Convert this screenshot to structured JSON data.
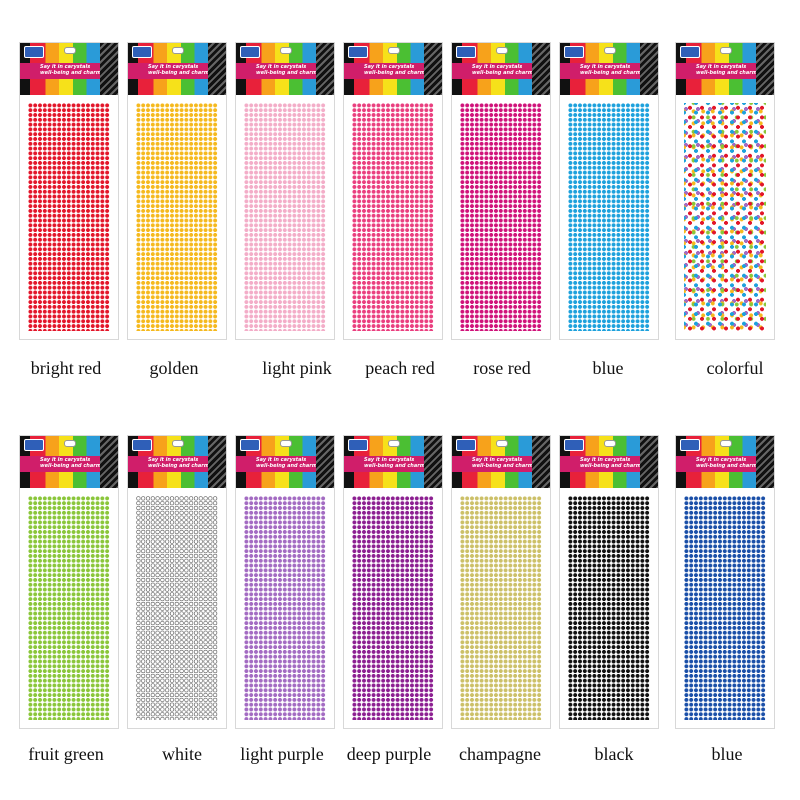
{
  "card_header": {
    "tagline": "Say it in carystals\nwell-being and charming!"
  },
  "row1": [
    {
      "label": "bright red",
      "color": "#e3162a"
    },
    {
      "label": "golden",
      "color": "#f5b91e"
    },
    {
      "label": "light pink",
      "color": "#f3adc8"
    },
    {
      "label": "peach red",
      "color": "#ea3f7f"
    },
    {
      "label": "rose red",
      "color": "#d0137a"
    },
    {
      "label": "blue",
      "color": "#1da1dc"
    },
    {
      "label": "colorful",
      "color": "multicolor"
    }
  ],
  "row2": [
    {
      "label": "fruit green",
      "color": "#8ac63a"
    },
    {
      "label": "white",
      "color": "#ffffff"
    },
    {
      "label": "light purple",
      "color": "#a36bc2"
    },
    {
      "label": "deep purple",
      "color": "#8c1f91"
    },
    {
      "label": "champagne",
      "color": "#ccc068"
    },
    {
      "label": "black",
      "color": "#111111"
    },
    {
      "label": "blue",
      "color": "#1a4fa8"
    }
  ]
}
